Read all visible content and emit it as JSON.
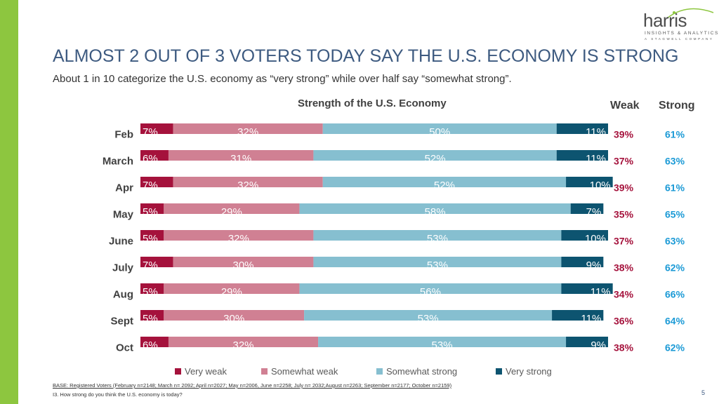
{
  "brand": {
    "name": "harris",
    "tagline": "INSIGHTS & ANALYTICS",
    "subtag": "A STAGWELL COMPANY"
  },
  "title": "ALMOST 2 OUT OF 3 VOTERS TODAY SAY THE U.S. ECONOMY IS STRONG",
  "subtitle": "About 1 in 10 categorize the U.S. economy as “very strong” while over half say “somewhat strong”.",
  "chart_data": {
    "type": "bar",
    "orientation": "horizontal",
    "stacked": true,
    "percent_stacked": true,
    "title": "Strength of the U.S. Economy",
    "categories": [
      "Feb",
      "March",
      "Apr",
      "May",
      "June",
      "July",
      "Aug",
      "Sept",
      "Oct"
    ],
    "series": [
      {
        "name": "Very weak",
        "color": "#a5123c",
        "values": [
          7,
          6,
          7,
          5,
          5,
          7,
          5,
          5,
          6
        ]
      },
      {
        "name": "Somewhat weak",
        "color": "#d08093",
        "values": [
          32,
          31,
          32,
          29,
          32,
          30,
          29,
          30,
          32
        ]
      },
      {
        "name": "Somewhat strong",
        "color": "#86bfd0",
        "values": [
          50,
          52,
          52,
          58,
          53,
          53,
          56,
          53,
          53
        ]
      },
      {
        "name": "Very strong",
        "color": "#0d5470",
        "values": [
          11,
          11,
          10,
          7,
          10,
          9,
          11,
          11,
          9
        ]
      }
    ],
    "summary_columns": [
      {
        "name": "Weak",
        "color": "#a5123c",
        "values": [
          "39%",
          "37%",
          "39%",
          "35%",
          "37%",
          "38%",
          "34%",
          "36%",
          "38%"
        ]
      },
      {
        "name": "Strong",
        "color": "#1b9ad6",
        "values": [
          "61%",
          "63%",
          "61%",
          "65%",
          "63%",
          "62%",
          "66%",
          "64%",
          "62%"
        ]
      }
    ],
    "legend_position": "bottom",
    "xlim": [
      0,
      100
    ]
  },
  "footnotes": {
    "base": "BASE: Registered Voters (February n=2148; March n= 2092; April n=2027; May n=2006, June n=2258; July n= 2032;August n=2263; September n=2177; October n=2159)",
    "question": "I3. How strong do you think the U.S. economy is today?"
  },
  "page_number": "5"
}
